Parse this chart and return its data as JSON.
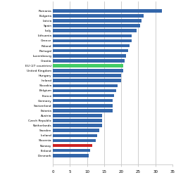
{
  "countries": [
    "Romania",
    "Bulgaria",
    "Latvia",
    "Spain",
    "Italy",
    "Lithuania",
    "Greece",
    "Poland",
    "Portugal",
    "Luxembourg",
    "Croatia",
    "EU (27 countries)",
    "United Kingdom",
    "Hungary",
    "Ireland",
    "Slovakia",
    "Belgium",
    "France",
    "Germany",
    "Switzerland",
    "Estonia",
    "Austria",
    "Czech Republic",
    "Netherlands",
    "Sweden",
    "Iceland",
    "Slovenia",
    "Norway",
    "Finland",
    "Denmark"
  ],
  "values": [
    32.0,
    26.5,
    26.0,
    25.5,
    24.5,
    23.0,
    23.0,
    22.5,
    22.0,
    21.5,
    21.0,
    20.5,
    20.5,
    20.0,
    20.0,
    19.0,
    18.5,
    18.0,
    17.5,
    17.5,
    17.5,
    14.5,
    14.5,
    14.5,
    13.5,
    13.0,
    12.5,
    11.5,
    11.0,
    10.5
  ],
  "bar_color_default": "#3366aa",
  "bar_color_eu": "#44cc66",
  "bar_color_norway": "#cc2222",
  "background_color": "#ffffff",
  "grid_color": "#bbbbbb",
  "xlim": [
    0,
    35
  ],
  "xticks": [
    0,
    5,
    10,
    15,
    20,
    25,
    30,
    35
  ]
}
